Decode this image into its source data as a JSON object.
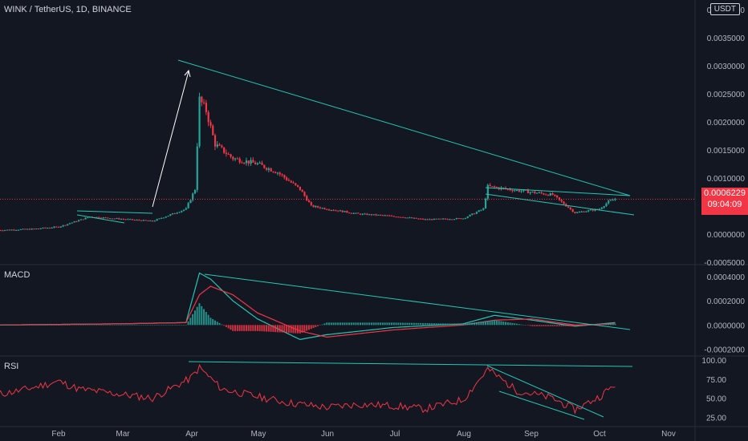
{
  "header": {
    "title": "WINK / TetherUS, 1D, BINANCE",
    "currency": "USDT"
  },
  "price_panel": {
    "current_price": "0.0006229",
    "countdown": "09:04:09",
    "ticks": [
      "0.0040000",
      "0.0035000",
      "0.0030000",
      "0.0025000",
      "0.0020000",
      "0.0015000",
      "0.0010000",
      "0.0000000",
      "-0.0005000"
    ]
  },
  "macd_panel": {
    "label": "MACD",
    "ticks": [
      "0.0004000",
      "0.0002000",
      "0.0000000",
      "-0.0002000"
    ]
  },
  "rsi_panel": {
    "label": "RSI",
    "ticks": [
      "100.00",
      "75.00",
      "50.00",
      "25.00"
    ]
  },
  "time_axis": [
    "Feb",
    "Mar",
    "Apr",
    "May",
    "Jun",
    "Jul",
    "Aug",
    "Sep",
    "Oct",
    "Nov"
  ],
  "colors": {
    "up": "#26a69a",
    "down": "#f23645",
    "trend": "#26c6b5",
    "rsi": "#f23645",
    "macd": "#26c6b5",
    "signal": "#f23645",
    "bg": "#131722"
  },
  "chart_data": [
    {
      "type": "line",
      "title": "WINK / TetherUS, 1D, BINANCE",
      "x": [
        "Jan 5",
        "Jan 20",
        "Feb 1",
        "Feb 15",
        "Mar 1",
        "Mar 15",
        "Mar 30",
        "Apr 3",
        "Apr 5",
        "Apr 8",
        "Apr 12",
        "Apr 20",
        "May 1",
        "May 10",
        "May 20",
        "May 25",
        "Jun 1",
        "Jun 15",
        "Jul 1",
        "Jul 15",
        "Aug 1",
        "Aug 10",
        "Aug 12",
        "Aug 25",
        "Sep 10",
        "Sep 20",
        "Oct 1",
        "Oct 5",
        "Oct 8"
      ],
      "series": [
        {
          "values": [
            7e-05,
            9e-05,
            0.00013,
            0.00031,
            0.00027,
            0.00023,
            0.00045,
            0.0008,
            0.0024,
            0.0022,
            0.0016,
            0.00135,
            0.00125,
            0.0011,
            0.0008,
            0.0005,
            0.00045,
            0.00036,
            0.00032,
            0.00026,
            0.00028,
            0.00045,
            0.00085,
            0.00078,
            0.0007,
            0.00038,
            0.00045,
            0.00058,
            0.0006229
          ]
        }
      ],
      "ylim": [
        -0.0005,
        0.0041
      ]
    },
    {
      "type": "line",
      "title": "MACD",
      "x": [
        "Jan 5",
        "Mar 1",
        "Mar 30",
        "Apr 5",
        "Apr 10",
        "Apr 20",
        "May 1",
        "May 20",
        "Jun 1",
        "Jul 1",
        "Aug 1",
        "Aug 15",
        "Sep 1",
        "Sep 20",
        "Oct 8"
      ],
      "series": [
        {
          "values": [
            0.0,
            1e-05,
            2e-05,
            0.00043,
            0.00038,
            0.0002,
            5e-05,
            -0.00012,
            -8e-05,
            -2e-05,
            1e-05,
            8e-05,
            4e-05,
            -1e-05,
            2e-05
          ]
        },
        {
          "values": [
            0.0,
            1e-05,
            2e-05,
            0.00025,
            0.00032,
            0.00025,
            0.0001,
            -5e-05,
            -0.0001,
            -4e-05,
            0.0,
            4e-05,
            5e-05,
            0.0,
            1e-05
          ]
        }
      ],
      "ylim": [
        -0.00025,
        0.00048
      ]
    },
    {
      "type": "line",
      "title": "RSI",
      "x": [
        "Jan 5",
        "Jan 15",
        "Feb 1",
        "Feb 10",
        "Mar 1",
        "Mar 15",
        "Apr 1",
        "Apr 5",
        "Apr 15",
        "May 1",
        "May 15",
        "Jun 1",
        "Jun 15",
        "Jul 1",
        "Jul 15",
        "Aug 1",
        "Aug 12",
        "Aug 25",
        "Sep 10",
        "Sep 20",
        "Oct 1",
        "Oct 8"
      ],
      "series": [
        {
          "values": [
            55,
            60,
            72,
            62,
            55,
            50,
            76,
            90,
            62,
            52,
            44,
            38,
            42,
            40,
            36,
            48,
            88,
            60,
            50,
            35,
            52,
            68
          ]
        }
      ],
      "ylim": [
        15,
        102
      ]
    }
  ]
}
